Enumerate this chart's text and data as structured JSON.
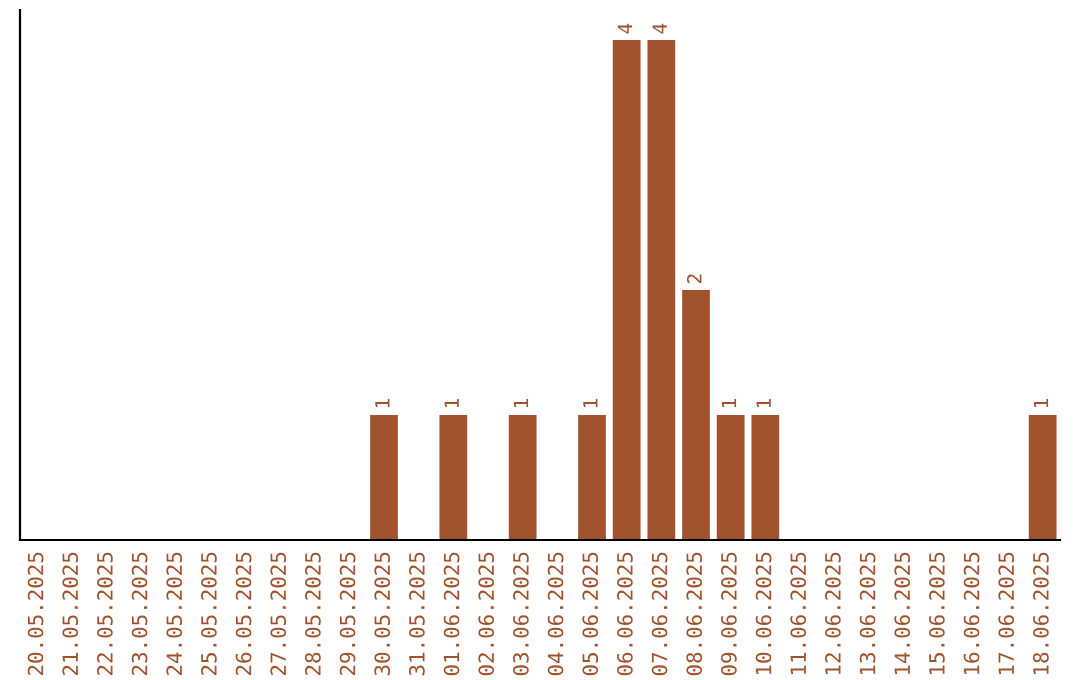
{
  "chart_data": {
    "type": "bar",
    "categories": [
      "20.05.2025",
      "21.05.2025",
      "22.05.2025",
      "23.05.2025",
      "24.05.2025",
      "25.05.2025",
      "26.05.2025",
      "27.05.2025",
      "28.05.2025",
      "29.05.2025",
      "30.05.2025",
      "31.05.2025",
      "01.06.2025",
      "02.06.2025",
      "03.06.2025",
      "04.06.2025",
      "05.06.2025",
      "06.06.2025",
      "07.06.2025",
      "08.06.2025",
      "09.06.2025",
      "10.06.2025",
      "11.06.2025",
      "12.06.2025",
      "13.06.2025",
      "14.06.2025",
      "15.06.2025",
      "16.06.2025",
      "17.06.2025",
      "18.06.2025"
    ],
    "values": [
      0,
      0,
      0,
      0,
      0,
      0,
      0,
      0,
      0,
      0,
      1,
      0,
      1,
      0,
      1,
      0,
      1,
      4,
      4,
      2,
      1,
      1,
      0,
      0,
      0,
      0,
      0,
      0,
      0,
      1
    ],
    "value_labels": [
      null,
      null,
      null,
      null,
      null,
      null,
      null,
      null,
      null,
      null,
      "1",
      null,
      "1",
      null,
      "1",
      null,
      "1",
      "4",
      "4",
      "2",
      "1",
      "1",
      null,
      null,
      null,
      null,
      null,
      null,
      null,
      "1"
    ],
    "color": "#a0522d",
    "grid": false,
    "tick_labels": "x"
  }
}
